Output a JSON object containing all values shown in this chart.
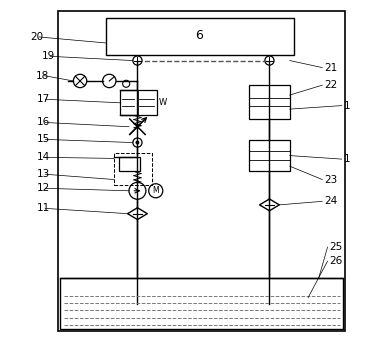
{
  "background_color": "#ffffff",
  "line_color": "#000000",
  "fig_width": 3.84,
  "fig_height": 3.52,
  "dpi": 100
}
